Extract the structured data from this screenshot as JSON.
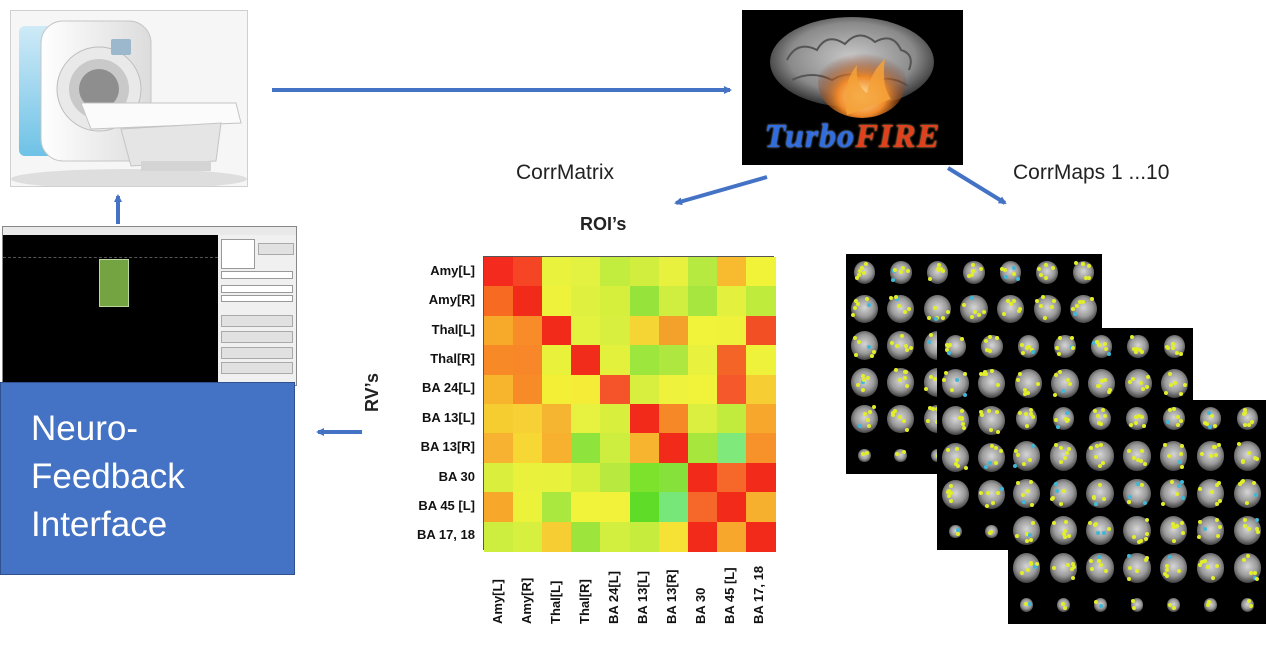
{
  "labels": {
    "corr_matrix": "CorrMatrix",
    "corr_maps": "CorrMaps 1 ...10",
    "rois_axis": "ROI’s",
    "rvs_axis": "RV’s"
  },
  "logo": {
    "part1": "Turbo",
    "part2": "FIRE"
  },
  "neurofeedback_box": {
    "line1": "Neuro-",
    "line2": "Feedback",
    "line3": "Interface"
  },
  "matrix": {
    "row_labels": [
      "Amy[L]",
      "Amy[R]",
      "Thal[L]",
      "Thal[R]",
      "BA 24[L]",
      "BA 13[L]",
      "BA 13[R]",
      "BA 30",
      "BA 45 [L]",
      "BA 17, 18"
    ],
    "col_labels": [
      "Amy[L]",
      "Amy[R]",
      "Thal[L]",
      "Thal[R]",
      "BA 24[L]",
      "BA 13[L]",
      "BA 13[R]",
      "BA 30",
      "BA 45 [L]",
      "BA 17, 18"
    ],
    "cell_colors": [
      [
        "#f42a1e",
        "#f64524",
        "#e9f23c",
        "#e3f241",
        "#c2ec3e",
        "#d1ee3e",
        "#e8f13d",
        "#b7ea40",
        "#f8ba2e",
        "#f0f337"
      ],
      [
        "#f66a22",
        "#f22a1a",
        "#eef23a",
        "#e0f03e",
        "#d6ef3d",
        "#95e33b",
        "#cfee40",
        "#a7e63e",
        "#e3f03d",
        "#bfeb3c"
      ],
      [
        "#f7a92a",
        "#f78c29",
        "#f22a1a",
        "#e3f13f",
        "#d8ef3f",
        "#f5d533",
        "#f4a12c",
        "#f1f23a",
        "#eef23a",
        "#f34f24"
      ],
      [
        "#f78a26",
        "#f78728",
        "#eaf13b",
        "#f22c1a",
        "#e3f13c",
        "#9ce63e",
        "#aee73f",
        "#e8f13d",
        "#f46426",
        "#eef23b"
      ],
      [
        "#f7b52e",
        "#f78b28",
        "#f3ef37",
        "#f4ec37",
        "#f5532a",
        "#d8ef3f",
        "#eef23c",
        "#f1f23a",
        "#f5582a",
        "#f6cd32"
      ],
      [
        "#f6cd31",
        "#f6d034",
        "#f6b530",
        "#e7f13f",
        "#d9ef3e",
        "#f22a1a",
        "#f68828",
        "#daef3f",
        "#c1ec3e",
        "#f7a72c"
      ],
      [
        "#f6b230",
        "#f6d733",
        "#f7b12e",
        "#8ee33d",
        "#cdee3e",
        "#f6b42f",
        "#f22a1a",
        "#a7e63c",
        "#7fe97b",
        "#f7922a"
      ],
      [
        "#daef3d",
        "#eaf13c",
        "#e8f13c",
        "#d6ef3d",
        "#b8e93f",
        "#7de22c",
        "#86e23a",
        "#f22a1a",
        "#f6672a",
        "#f22a1a"
      ],
      [
        "#f7a82b",
        "#ecf13a",
        "#aae73f",
        "#f1f23a",
        "#f2f23a",
        "#5fdc28",
        "#78e77a",
        "#f6682a",
        "#f22a1a",
        "#f7b02e"
      ],
      [
        "#cdee3e",
        "#d7ef3e",
        "#f6ce34",
        "#9de53d",
        "#d2ee3f",
        "#c6ec3e",
        "#f5e235",
        "#f22a1a",
        "#f7a72c",
        "#f22a1a"
      ]
    ]
  },
  "arrow_color": "#4472c4"
}
